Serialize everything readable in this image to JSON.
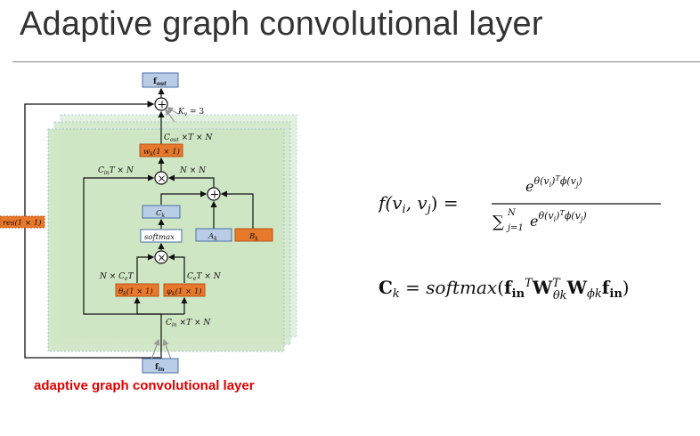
{
  "slide": {
    "title": "Adaptive graph convolutional layer",
    "caption": "adaptive graph convolutional layer"
  },
  "diagram": {
    "f_out": "f",
    "f_out_sub": "out",
    "f_in": "f",
    "f_in_sub": "in",
    "kv": "K",
    "kv_sub": "v",
    "kv_rhs": " = 3",
    "cout_label": "C",
    "cout_sub": "out",
    "cout_rest": " ×T × N",
    "wk": "w",
    "wk_sub": "k",
    "wk_rest": "(1 × 1)",
    "cin_t_n_left": "C",
    "cin_t_n_left_sub": "in",
    "cin_t_n_left_rest": "T × N",
    "nxn": "N × N",
    "ck": "C",
    "ck_sub": "k",
    "softmax": "softmax",
    "ak": "A",
    "ak_sub": "k",
    "bk": "B",
    "bk_sub": "k",
    "theta": "θ",
    "theta_sub": "k",
    "theta_rest": "(1 × 1)",
    "phi": "φ",
    "phi_sub": "k",
    "phi_rest": "(1 × 1)",
    "n_ce_t": "N × C",
    "n_ce_t_sub": "e",
    "n_ce_t_rest": "T",
    "ce_t_n": "C",
    "ce_t_n_sub": "e",
    "ce_t_n_rest": "T × N",
    "cin_bottom": "C",
    "cin_bottom_sub": "in",
    "cin_bottom_rest": " ×T × N",
    "res": "res(1 × 1)",
    "plus": "+",
    "times": "×"
  },
  "colors": {
    "blue_fill": "#b9cde6",
    "blue_stroke": "#4a6fa5",
    "orange_fill": "#e8782a",
    "orange_stroke": "#b5541a",
    "green_panel": "#cfe6c4",
    "caption_red": "#e00000"
  }
}
